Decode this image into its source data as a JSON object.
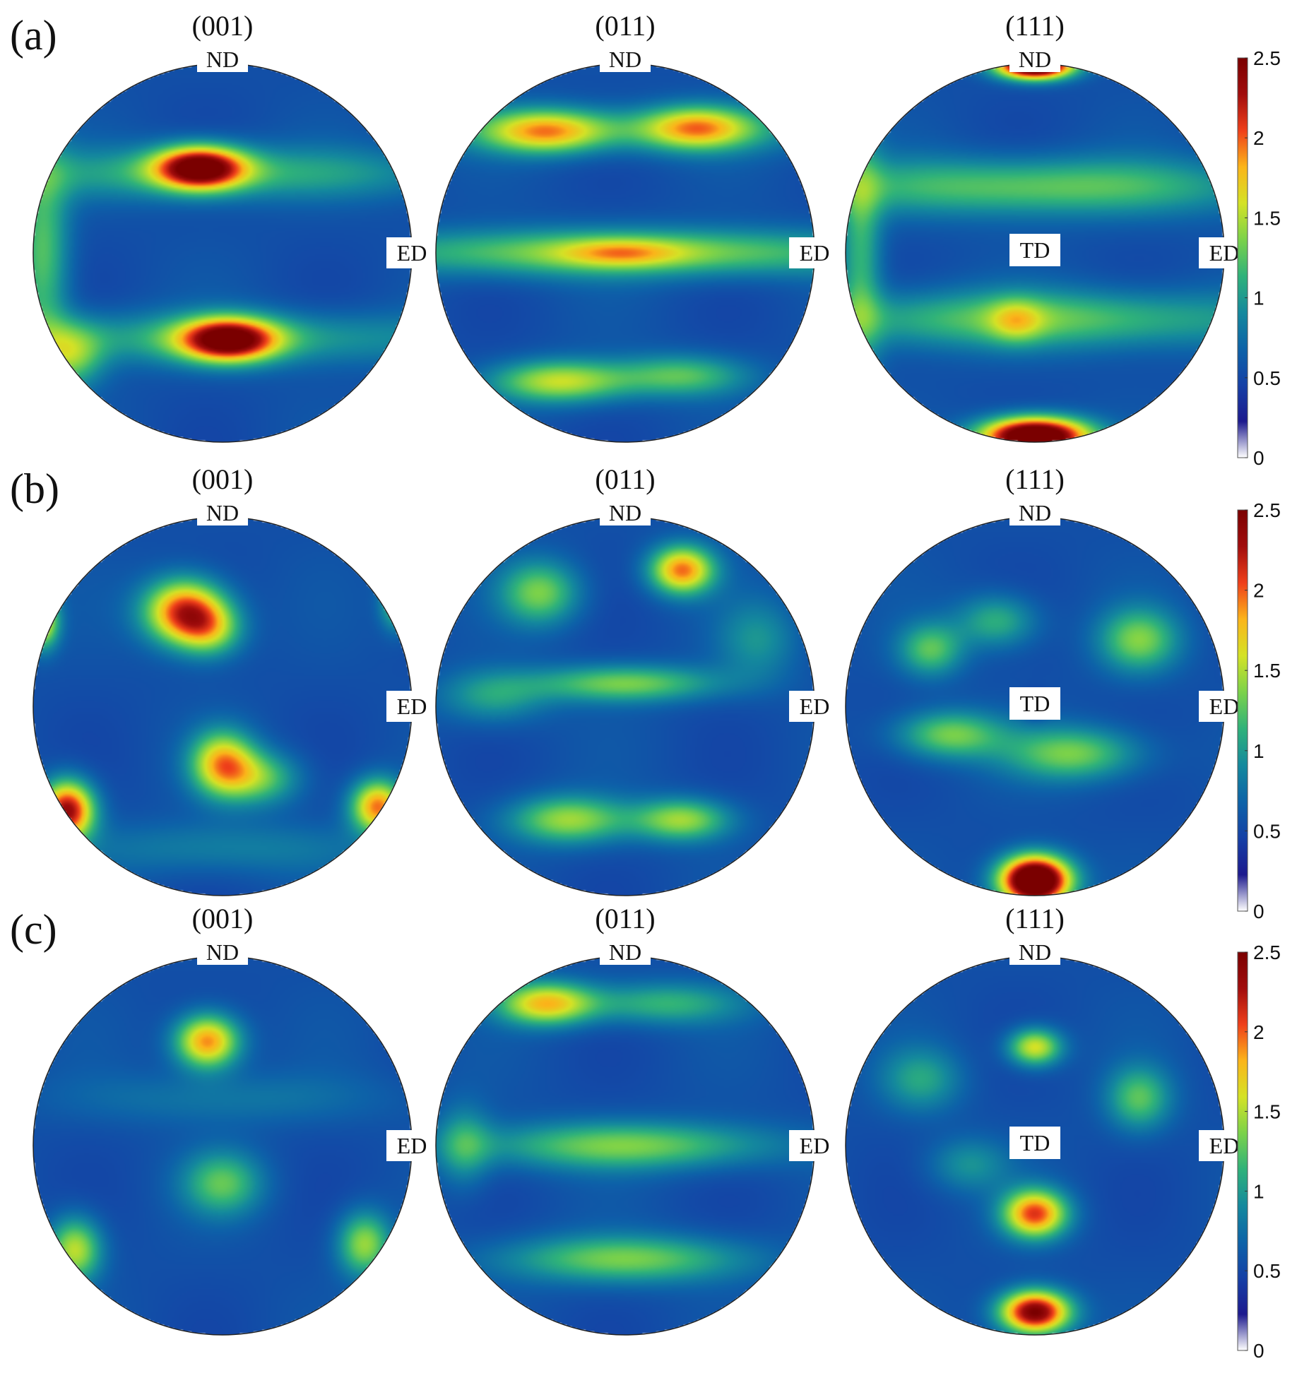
{
  "colors": {
    "colormap": [
      "#ffffff",
      "#1d1a8e",
      "#1540a6",
      "#0d63a8",
      "#14899d",
      "#2fb27a",
      "#7bd24a",
      "#d4e226",
      "#fbb51a",
      "#ef3f1a",
      "#a10d0d",
      "#7a0000"
    ],
    "background_level": "#13369e",
    "circle_outline": "#222222"
  },
  "chart_data": [
    {
      "type": "heatmap",
      "title": "",
      "panel": "(a)",
      "subtype": "pole-figure",
      "figures": [
        {
          "plane": "(001)",
          "directions": [
            "ND",
            "ED"
          ],
          "base": 0.55,
          "blobs": [
            {
              "x": -0.12,
              "y": 0.45,
              "sx": 0.17,
              "sy": 0.08,
              "v": 1.9
            },
            {
              "x": 0.03,
              "y": -0.46,
              "sx": 0.18,
              "sy": 0.08,
              "v": 1.8
            },
            {
              "x": 0.0,
              "y": 0.42,
              "sx": 0.95,
              "sy": 0.1,
              "v": 0.55
            },
            {
              "x": 0.0,
              "y": -0.45,
              "sx": 0.95,
              "sy": 0.1,
              "v": 0.55
            },
            {
              "x": -0.8,
              "y": -0.55,
              "sx": 0.12,
              "sy": 0.12,
              "v": 0.7
            },
            {
              "x": -0.95,
              "y": 0.0,
              "sx": 0.1,
              "sy": 0.4,
              "v": 0.7
            }
          ]
        },
        {
          "plane": "(011)",
          "directions": [
            "ND",
            "ED"
          ],
          "base": 0.55,
          "blobs": [
            {
              "x": -0.42,
              "y": 0.64,
              "sx": 0.22,
              "sy": 0.08,
              "v": 1.0
            },
            {
              "x": 0.38,
              "y": 0.66,
              "sx": 0.2,
              "sy": 0.08,
              "v": 1.0
            },
            {
              "x": 0.0,
              "y": 0.65,
              "sx": 0.9,
              "sy": 0.09,
              "v": 0.45
            },
            {
              "x": 0.0,
              "y": 0.0,
              "sx": 1.0,
              "sy": 0.09,
              "v": 0.9
            },
            {
              "x": -0.02,
              "y": 0.0,
              "sx": 0.22,
              "sy": 0.05,
              "v": 0.5
            },
            {
              "x": -0.35,
              "y": -0.68,
              "sx": 0.25,
              "sy": 0.08,
              "v": 1.0
            },
            {
              "x": 0.3,
              "y": -0.65,
              "sx": 0.25,
              "sy": 0.08,
              "v": 0.7
            }
          ]
        },
        {
          "plane": "(111)",
          "directions": [
            "ND",
            "ED",
            "TD"
          ],
          "base": 0.55,
          "blobs": [
            {
              "x": 0.0,
              "y": 0.99,
              "sx": 0.14,
              "sy": 0.05,
              "v": 2.6
            },
            {
              "x": 0.0,
              "y": -0.97,
              "sx": 0.2,
              "sy": 0.07,
              "v": 2.6
            },
            {
              "x": 0.0,
              "y": 0.35,
              "sx": 0.9,
              "sy": 0.11,
              "v": 0.75
            },
            {
              "x": 0.0,
              "y": -0.35,
              "sx": 0.9,
              "sy": 0.11,
              "v": 0.75
            },
            {
              "x": -0.1,
              "y": -0.36,
              "sx": 0.1,
              "sy": 0.08,
              "v": 0.5
            },
            {
              "x": -0.92,
              "y": 0.0,
              "sx": 0.08,
              "sy": 0.5,
              "v": 0.6
            }
          ]
        }
      ]
    },
    {
      "type": "heatmap",
      "title": "",
      "panel": "(b)",
      "subtype": "pole-figure",
      "figures": [
        {
          "plane": "(001)",
          "directions": [
            "ND",
            "ED"
          ],
          "base": 0.55,
          "blobs": [
            {
              "x": -0.2,
              "y": 0.5,
              "sx": 0.15,
              "sy": 0.12,
              "v": 1.6
            },
            {
              "x": -0.06,
              "y": 0.4,
              "sx": 0.12,
              "sy": 0.1,
              "v": 0.7
            },
            {
              "x": 0.0,
              "y": -0.3,
              "sx": 0.12,
              "sy": 0.12,
              "v": 1.2
            },
            {
              "x": 0.2,
              "y": -0.38,
              "sx": 0.15,
              "sy": 0.1,
              "v": 0.7
            },
            {
              "x": -0.82,
              "y": -0.55,
              "sx": 0.1,
              "sy": 0.11,
              "v": 1.8
            },
            {
              "x": 0.82,
              "y": -0.53,
              "sx": 0.1,
              "sy": 0.1,
              "v": 1.4
            },
            {
              "x": -0.95,
              "y": 0.45,
              "sx": 0.06,
              "sy": 0.1,
              "v": 1.2
            },
            {
              "x": 0.92,
              "y": 0.55,
              "sx": 0.06,
              "sy": 0.1,
              "v": 0.8
            },
            {
              "x": 0.0,
              "y": -0.75,
              "sx": 0.6,
              "sy": 0.1,
              "v": 0.3
            }
          ]
        },
        {
          "plane": "(011)",
          "directions": [
            "ND",
            "ED"
          ],
          "base": 0.55,
          "blobs": [
            {
              "x": 0.3,
              "y": 0.72,
              "sx": 0.12,
              "sy": 0.09,
              "v": 1.4
            },
            {
              "x": -0.45,
              "y": 0.6,
              "sx": 0.15,
              "sy": 0.12,
              "v": 0.8
            },
            {
              "x": 0.0,
              "y": 0.12,
              "sx": 0.35,
              "sy": 0.07,
              "v": 0.8
            },
            {
              "x": -0.7,
              "y": 0.05,
              "sx": 0.2,
              "sy": 0.1,
              "v": 0.5
            },
            {
              "x": -0.3,
              "y": -0.6,
              "sx": 0.22,
              "sy": 0.09,
              "v": 0.9
            },
            {
              "x": 0.3,
              "y": -0.6,
              "sx": 0.18,
              "sy": 0.08,
              "v": 0.9
            },
            {
              "x": 0.7,
              "y": 0.35,
              "sx": 0.15,
              "sy": 0.15,
              "v": 0.4
            }
          ]
        },
        {
          "plane": "(111)",
          "directions": [
            "ND",
            "ED",
            "TD"
          ],
          "base": 0.55,
          "blobs": [
            {
              "x": 0.0,
              "y": -0.92,
              "sx": 0.13,
              "sy": 0.09,
              "v": 2.7
            },
            {
              "x": 0.55,
              "y": 0.35,
              "sx": 0.15,
              "sy": 0.12,
              "v": 0.8
            },
            {
              "x": -0.55,
              "y": 0.3,
              "sx": 0.12,
              "sy": 0.1,
              "v": 0.7
            },
            {
              "x": -0.45,
              "y": -0.15,
              "sx": 0.2,
              "sy": 0.09,
              "v": 0.8
            },
            {
              "x": 0.2,
              "y": -0.25,
              "sx": 0.25,
              "sy": 0.1,
              "v": 0.8
            },
            {
              "x": -0.2,
              "y": 0.45,
              "sx": 0.15,
              "sy": 0.1,
              "v": 0.6
            },
            {
              "x": 0.0,
              "y": 0.0,
              "sx": 0.05,
              "sy": 0.05,
              "v": -0.3
            }
          ]
        }
      ]
    },
    {
      "type": "heatmap",
      "title": "",
      "panel": "(c)",
      "subtype": "pole-figure",
      "figures": [
        {
          "plane": "(001)",
          "directions": [
            "ND",
            "ED"
          ],
          "base": 0.55,
          "blobs": [
            {
              "x": -0.08,
              "y": 0.55,
              "sx": 0.12,
              "sy": 0.1,
              "v": 1.4
            },
            {
              "x": 0.0,
              "y": -0.2,
              "sx": 0.15,
              "sy": 0.12,
              "v": 0.7
            },
            {
              "x": -0.78,
              "y": -0.55,
              "sx": 0.1,
              "sy": 0.12,
              "v": 1.0
            },
            {
              "x": 0.75,
              "y": -0.52,
              "sx": 0.1,
              "sy": 0.12,
              "v": 0.9
            },
            {
              "x": 0.0,
              "y": 0.25,
              "sx": 0.6,
              "sy": 0.1,
              "v": 0.25
            }
          ]
        },
        {
          "plane": "(011)",
          "directions": [
            "ND",
            "ED"
          ],
          "base": 0.55,
          "blobs": [
            {
              "x": -0.42,
              "y": 0.75,
              "sx": 0.18,
              "sy": 0.08,
              "v": 1.2
            },
            {
              "x": 0.2,
              "y": 0.75,
              "sx": 0.3,
              "sy": 0.08,
              "v": 0.6
            },
            {
              "x": 0.0,
              "y": 0.0,
              "sx": 0.55,
              "sy": 0.09,
              "v": 0.8
            },
            {
              "x": 0.0,
              "y": -0.6,
              "sx": 0.45,
              "sy": 0.09,
              "v": 0.8
            },
            {
              "x": -0.85,
              "y": 0.0,
              "sx": 0.1,
              "sy": 0.15,
              "v": 0.5
            }
          ]
        },
        {
          "plane": "(111)",
          "directions": [
            "ND",
            "ED",
            "TD"
          ],
          "base": 0.55,
          "blobs": [
            {
              "x": 0.0,
              "y": 0.52,
              "sx": 0.1,
              "sy": 0.07,
              "v": 1.1
            },
            {
              "x": 0.0,
              "y": -0.36,
              "sx": 0.12,
              "sy": 0.09,
              "v": 1.5
            },
            {
              "x": 0.0,
              "y": -0.88,
              "sx": 0.13,
              "sy": 0.08,
              "v": 2.0
            },
            {
              "x": -0.6,
              "y": 0.35,
              "sx": 0.15,
              "sy": 0.12,
              "v": 0.5
            },
            {
              "x": 0.55,
              "y": 0.25,
              "sx": 0.12,
              "sy": 0.12,
              "v": 0.7
            },
            {
              "x": -0.35,
              "y": -0.1,
              "sx": 0.15,
              "sy": 0.1,
              "v": 0.4
            }
          ]
        }
      ]
    }
  ],
  "colorbar": {
    "ticks": [
      "2.5",
      "2",
      "1.5",
      "1",
      "0.5",
      "0"
    ],
    "range": [
      0,
      2.5
    ]
  }
}
